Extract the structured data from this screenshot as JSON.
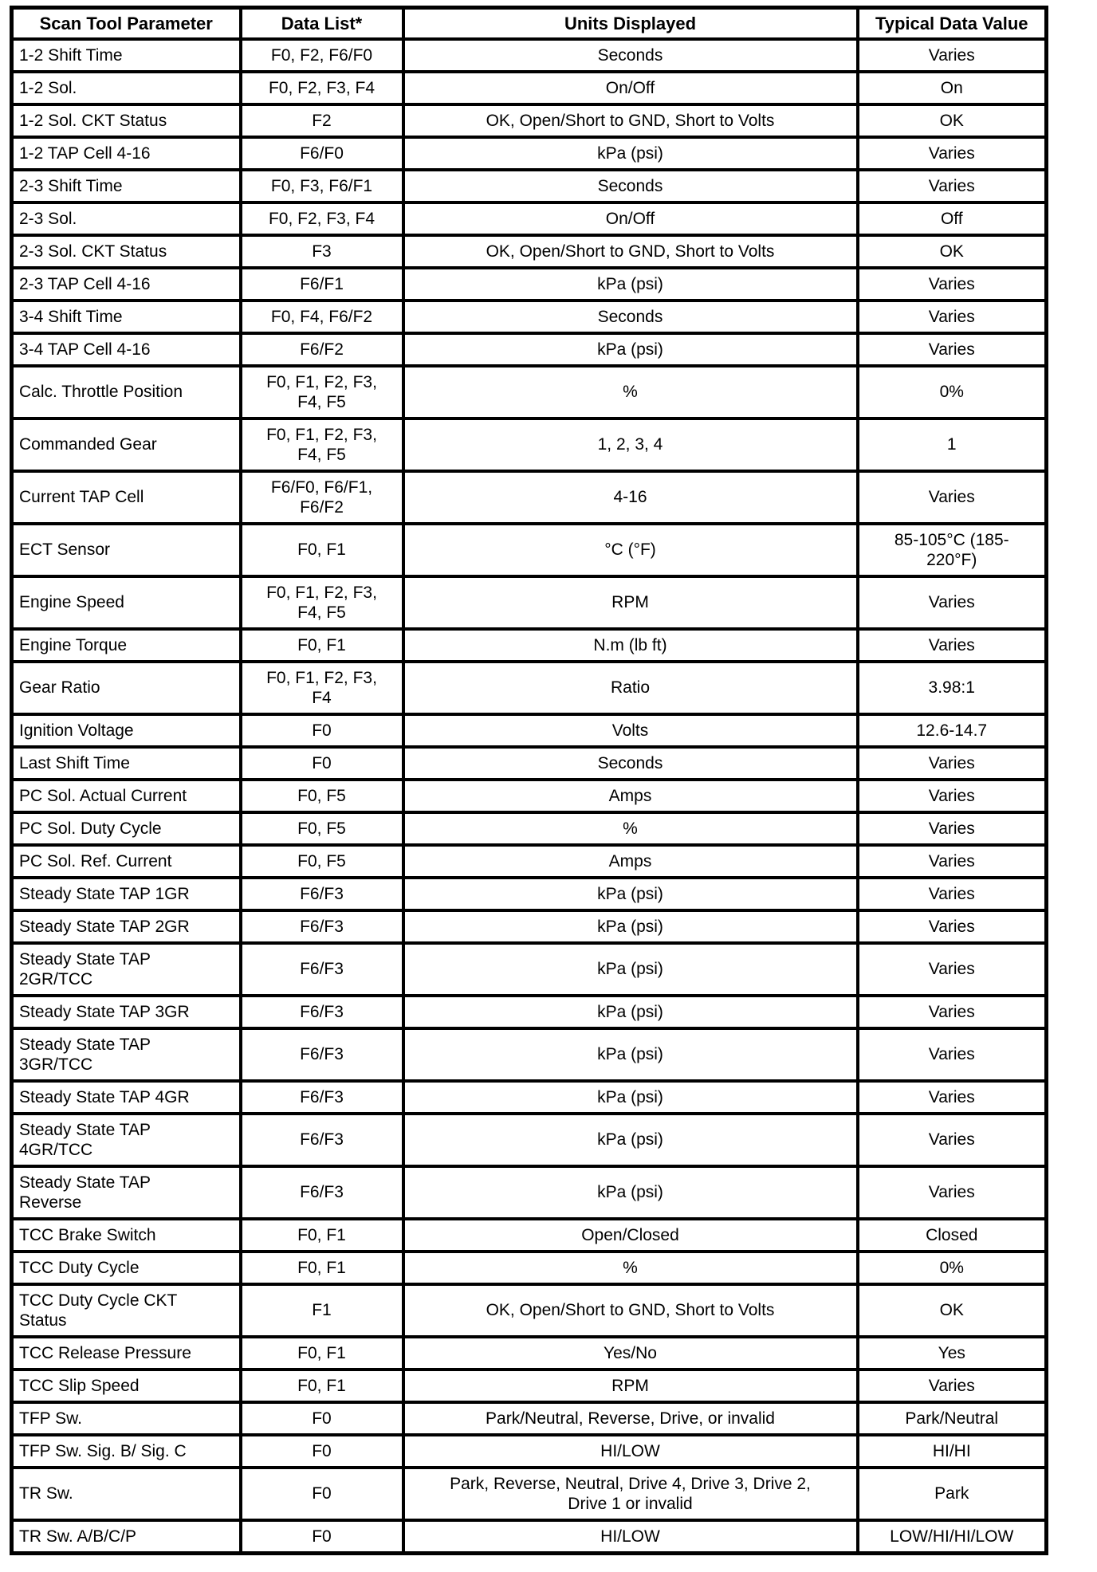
{
  "table": {
    "columns": [
      "Scan Tool Parameter",
      "Data List*",
      "Units Displayed",
      "Typical Data Value"
    ],
    "rows": [
      {
        "param": "1-2 Shift Time",
        "list": "F0, F2, F6/F0",
        "units": "Seconds",
        "value": "Varies"
      },
      {
        "param": "1-2 Sol.",
        "list": "F0, F2, F3, F4",
        "units": "On/Off",
        "value": "On"
      },
      {
        "param": "1-2 Sol. CKT Status",
        "list": "F2",
        "units": "OK, Open/Short to GND, Short to Volts",
        "value": "OK"
      },
      {
        "param": "1-2 TAP Cell 4-16",
        "list": "F6/F0",
        "units": "kPa (psi)",
        "value": "Varies"
      },
      {
        "param": "2-3 Shift Time",
        "list": "F0, F3, F6/F1",
        "units": "Seconds",
        "value": "Varies"
      },
      {
        "param": "2-3 Sol.",
        "list": "F0, F2, F3, F4",
        "units": "On/Off",
        "value": "Off"
      },
      {
        "param": "2-3 Sol. CKT Status",
        "list": "F3",
        "units": "OK, Open/Short to GND, Short to Volts",
        "value": "OK"
      },
      {
        "param": "2-3 TAP Cell 4-16",
        "list": "F6/F1",
        "units": "kPa (psi)",
        "value": "Varies"
      },
      {
        "param": "3-4 Shift Time",
        "list": "F0, F4, F6/F2",
        "units": "Seconds",
        "value": "Varies"
      },
      {
        "param": "3-4 TAP Cell 4-16",
        "list": "F6/F2",
        "units": "kPa (psi)",
        "value": "Varies"
      },
      {
        "param": "Calc. Throttle Position",
        "list": "F0, F1, F2, F3,\nF4, F5",
        "units": "%",
        "value": "0%"
      },
      {
        "param": "Commanded Gear",
        "list": "F0, F1, F2, F3,\nF4, F5",
        "units": "1, 2, 3, 4",
        "value": "1"
      },
      {
        "param": "Current TAP Cell",
        "list": "F6/F0, F6/F1,\nF6/F2",
        "units": "4-16",
        "value": "Varies"
      },
      {
        "param": "ECT Sensor",
        "list": "F0, F1",
        "units": "°C (°F)",
        "value": "85-105°C (185-\n220°F)"
      },
      {
        "param": "Engine Speed",
        "list": "F0, F1, F2, F3,\nF4, F5",
        "units": "RPM",
        "value": "Varies"
      },
      {
        "param": "Engine Torque",
        "list": "F0, F1",
        "units": "N.m (lb ft)",
        "value": "Varies"
      },
      {
        "param": "Gear Ratio",
        "list": "F0, F1, F2, F3,\nF4",
        "units": "Ratio",
        "value": "3.98:1"
      },
      {
        "param": "Ignition Voltage",
        "list": "F0",
        "units": "Volts",
        "value": "12.6-14.7"
      },
      {
        "param": "Last Shift Time",
        "list": "F0",
        "units": "Seconds",
        "value": "Varies"
      },
      {
        "param": "PC Sol. Actual Current",
        "list": "F0, F5",
        "units": "Amps",
        "value": "Varies"
      },
      {
        "param": "PC Sol. Duty Cycle",
        "list": "F0, F5",
        "units": "%",
        "value": "Varies"
      },
      {
        "param": "PC Sol. Ref. Current",
        "list": "F0, F5",
        "units": "Amps",
        "value": "Varies"
      },
      {
        "param": "Steady State TAP 1GR",
        "list": "F6/F3",
        "units": "kPa (psi)",
        "value": "Varies"
      },
      {
        "param": "Steady State TAP 2GR",
        "list": "F6/F3",
        "units": "kPa (psi)",
        "value": "Varies"
      },
      {
        "param": "Steady State TAP\n2GR/TCC",
        "list": "F6/F3",
        "units": "kPa (psi)",
        "value": "Varies"
      },
      {
        "param": "Steady State TAP 3GR",
        "list": "F6/F3",
        "units": "kPa (psi)",
        "value": "Varies"
      },
      {
        "param": "Steady State TAP\n3GR/TCC",
        "list": "F6/F3",
        "units": "kPa (psi)",
        "value": "Varies"
      },
      {
        "param": "Steady State TAP 4GR",
        "list": "F6/F3",
        "units": "kPa (psi)",
        "value": "Varies"
      },
      {
        "param": "Steady State TAP\n4GR/TCC",
        "list": "F6/F3",
        "units": "kPa (psi)",
        "value": "Varies"
      },
      {
        "param": "Steady State TAP\nReverse",
        "list": "F6/F3",
        "units": "kPa (psi)",
        "value": "Varies"
      },
      {
        "param": "TCC Brake Switch",
        "list": "F0, F1",
        "units": "Open/Closed",
        "value": "Closed"
      },
      {
        "param": "TCC Duty Cycle",
        "list": "F0, F1",
        "units": "%",
        "value": "0%"
      },
      {
        "param": "TCC Duty Cycle CKT\nStatus",
        "list": "F1",
        "units": "OK, Open/Short to GND, Short to Volts",
        "value": "OK"
      },
      {
        "param": "TCC Release Pressure",
        "list": "F0, F1",
        "units": "Yes/No",
        "value": "Yes"
      },
      {
        "param": "TCC Slip Speed",
        "list": "F0, F1",
        "units": "RPM",
        "value": "Varies"
      },
      {
        "param": "TFP Sw.",
        "list": "F0",
        "units": "Park/Neutral, Reverse, Drive, or invalid",
        "value": "Park/Neutral"
      },
      {
        "param": "TFP Sw. Sig. B/ Sig. C",
        "list": "F0",
        "units": "HI/LOW",
        "value": "HI/HI"
      },
      {
        "param": "TR Sw.",
        "list": "F0",
        "units": "Park, Reverse, Neutral, Drive 4, Drive 3, Drive 2,\nDrive 1 or invalid",
        "value": "Park"
      },
      {
        "param": "TR Sw. A/B/C/P",
        "list": "F0",
        "units": "HI/LOW",
        "value": "LOW/HI/HI/LOW"
      }
    ]
  }
}
